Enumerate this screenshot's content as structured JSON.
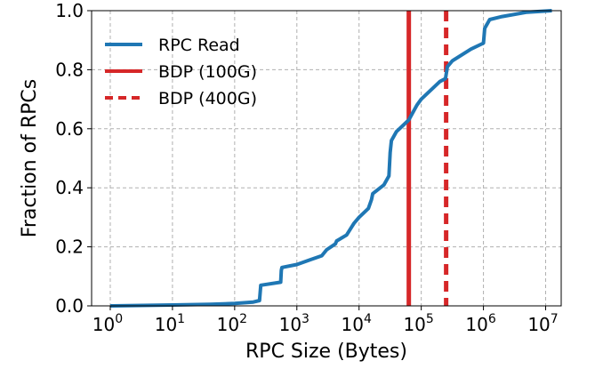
{
  "chart_data": {
    "type": "line",
    "title": "",
    "xlabel": "RPC Size (Bytes)",
    "ylabel": "Fraction of RPCs",
    "xscale": "log",
    "xlim_exp": [
      -0.3,
      7.25
    ],
    "ylim": [
      0.0,
      1.0
    ],
    "grid": true,
    "legend_position": "top-left",
    "x_ticks": [
      {
        "base": "10",
        "exp": "0"
      },
      {
        "base": "10",
        "exp": "1"
      },
      {
        "base": "10",
        "exp": "2"
      },
      {
        "base": "10",
        "exp": "3"
      },
      {
        "base": "10",
        "exp": "4"
      },
      {
        "base": "10",
        "exp": "5"
      },
      {
        "base": "10",
        "exp": "6"
      },
      {
        "base": "10",
        "exp": "7"
      }
    ],
    "y_ticks": [
      "0.0",
      "0.2",
      "0.4",
      "0.6",
      "0.8",
      "1.0"
    ],
    "y_tick_values": [
      0.0,
      0.2,
      0.4,
      0.6,
      0.8,
      1.0
    ],
    "series": [
      {
        "name": "RPC Read",
        "color": "#1f77b4",
        "style": "solid",
        "points_log10x": [
          [
            0.0,
            0.0
          ],
          [
            1.0,
            0.003
          ],
          [
            1.6,
            0.005
          ],
          [
            2.0,
            0.008
          ],
          [
            2.3,
            0.013
          ],
          [
            2.4,
            0.018
          ],
          [
            2.42,
            0.07
          ],
          [
            2.74,
            0.08
          ],
          [
            2.75,
            0.12
          ],
          [
            2.76,
            0.13
          ],
          [
            3.0,
            0.14
          ],
          [
            3.2,
            0.155
          ],
          [
            3.4,
            0.17
          ],
          [
            3.48,
            0.19
          ],
          [
            3.62,
            0.21
          ],
          [
            3.64,
            0.22
          ],
          [
            3.8,
            0.24
          ],
          [
            3.92,
            0.28
          ],
          [
            4.0,
            0.3
          ],
          [
            4.15,
            0.33
          ],
          [
            4.2,
            0.36
          ],
          [
            4.22,
            0.38
          ],
          [
            4.4,
            0.41
          ],
          [
            4.48,
            0.44
          ],
          [
            4.5,
            0.52
          ],
          [
            4.52,
            0.56
          ],
          [
            4.6,
            0.59
          ],
          [
            4.7,
            0.61
          ],
          [
            4.8,
            0.63
          ],
          [
            4.93,
            0.68
          ],
          [
            5.0,
            0.7
          ],
          [
            5.2,
            0.74
          ],
          [
            5.3,
            0.76
          ],
          [
            5.39,
            0.77
          ],
          [
            5.42,
            0.81
          ],
          [
            5.5,
            0.83
          ],
          [
            5.8,
            0.87
          ],
          [
            6.0,
            0.89
          ],
          [
            6.02,
            0.94
          ],
          [
            6.1,
            0.97
          ],
          [
            6.3,
            0.98
          ],
          [
            6.7,
            0.995
          ],
          [
            7.1,
            1.0
          ]
        ]
      },
      {
        "name": "BDP (100G)",
        "color": "#d62728",
        "style": "solid",
        "vline_log10x": 4.8
      },
      {
        "name": "BDP (400G)",
        "color": "#d62728",
        "style": "dashed",
        "vline_log10x": 5.4
      }
    ]
  }
}
